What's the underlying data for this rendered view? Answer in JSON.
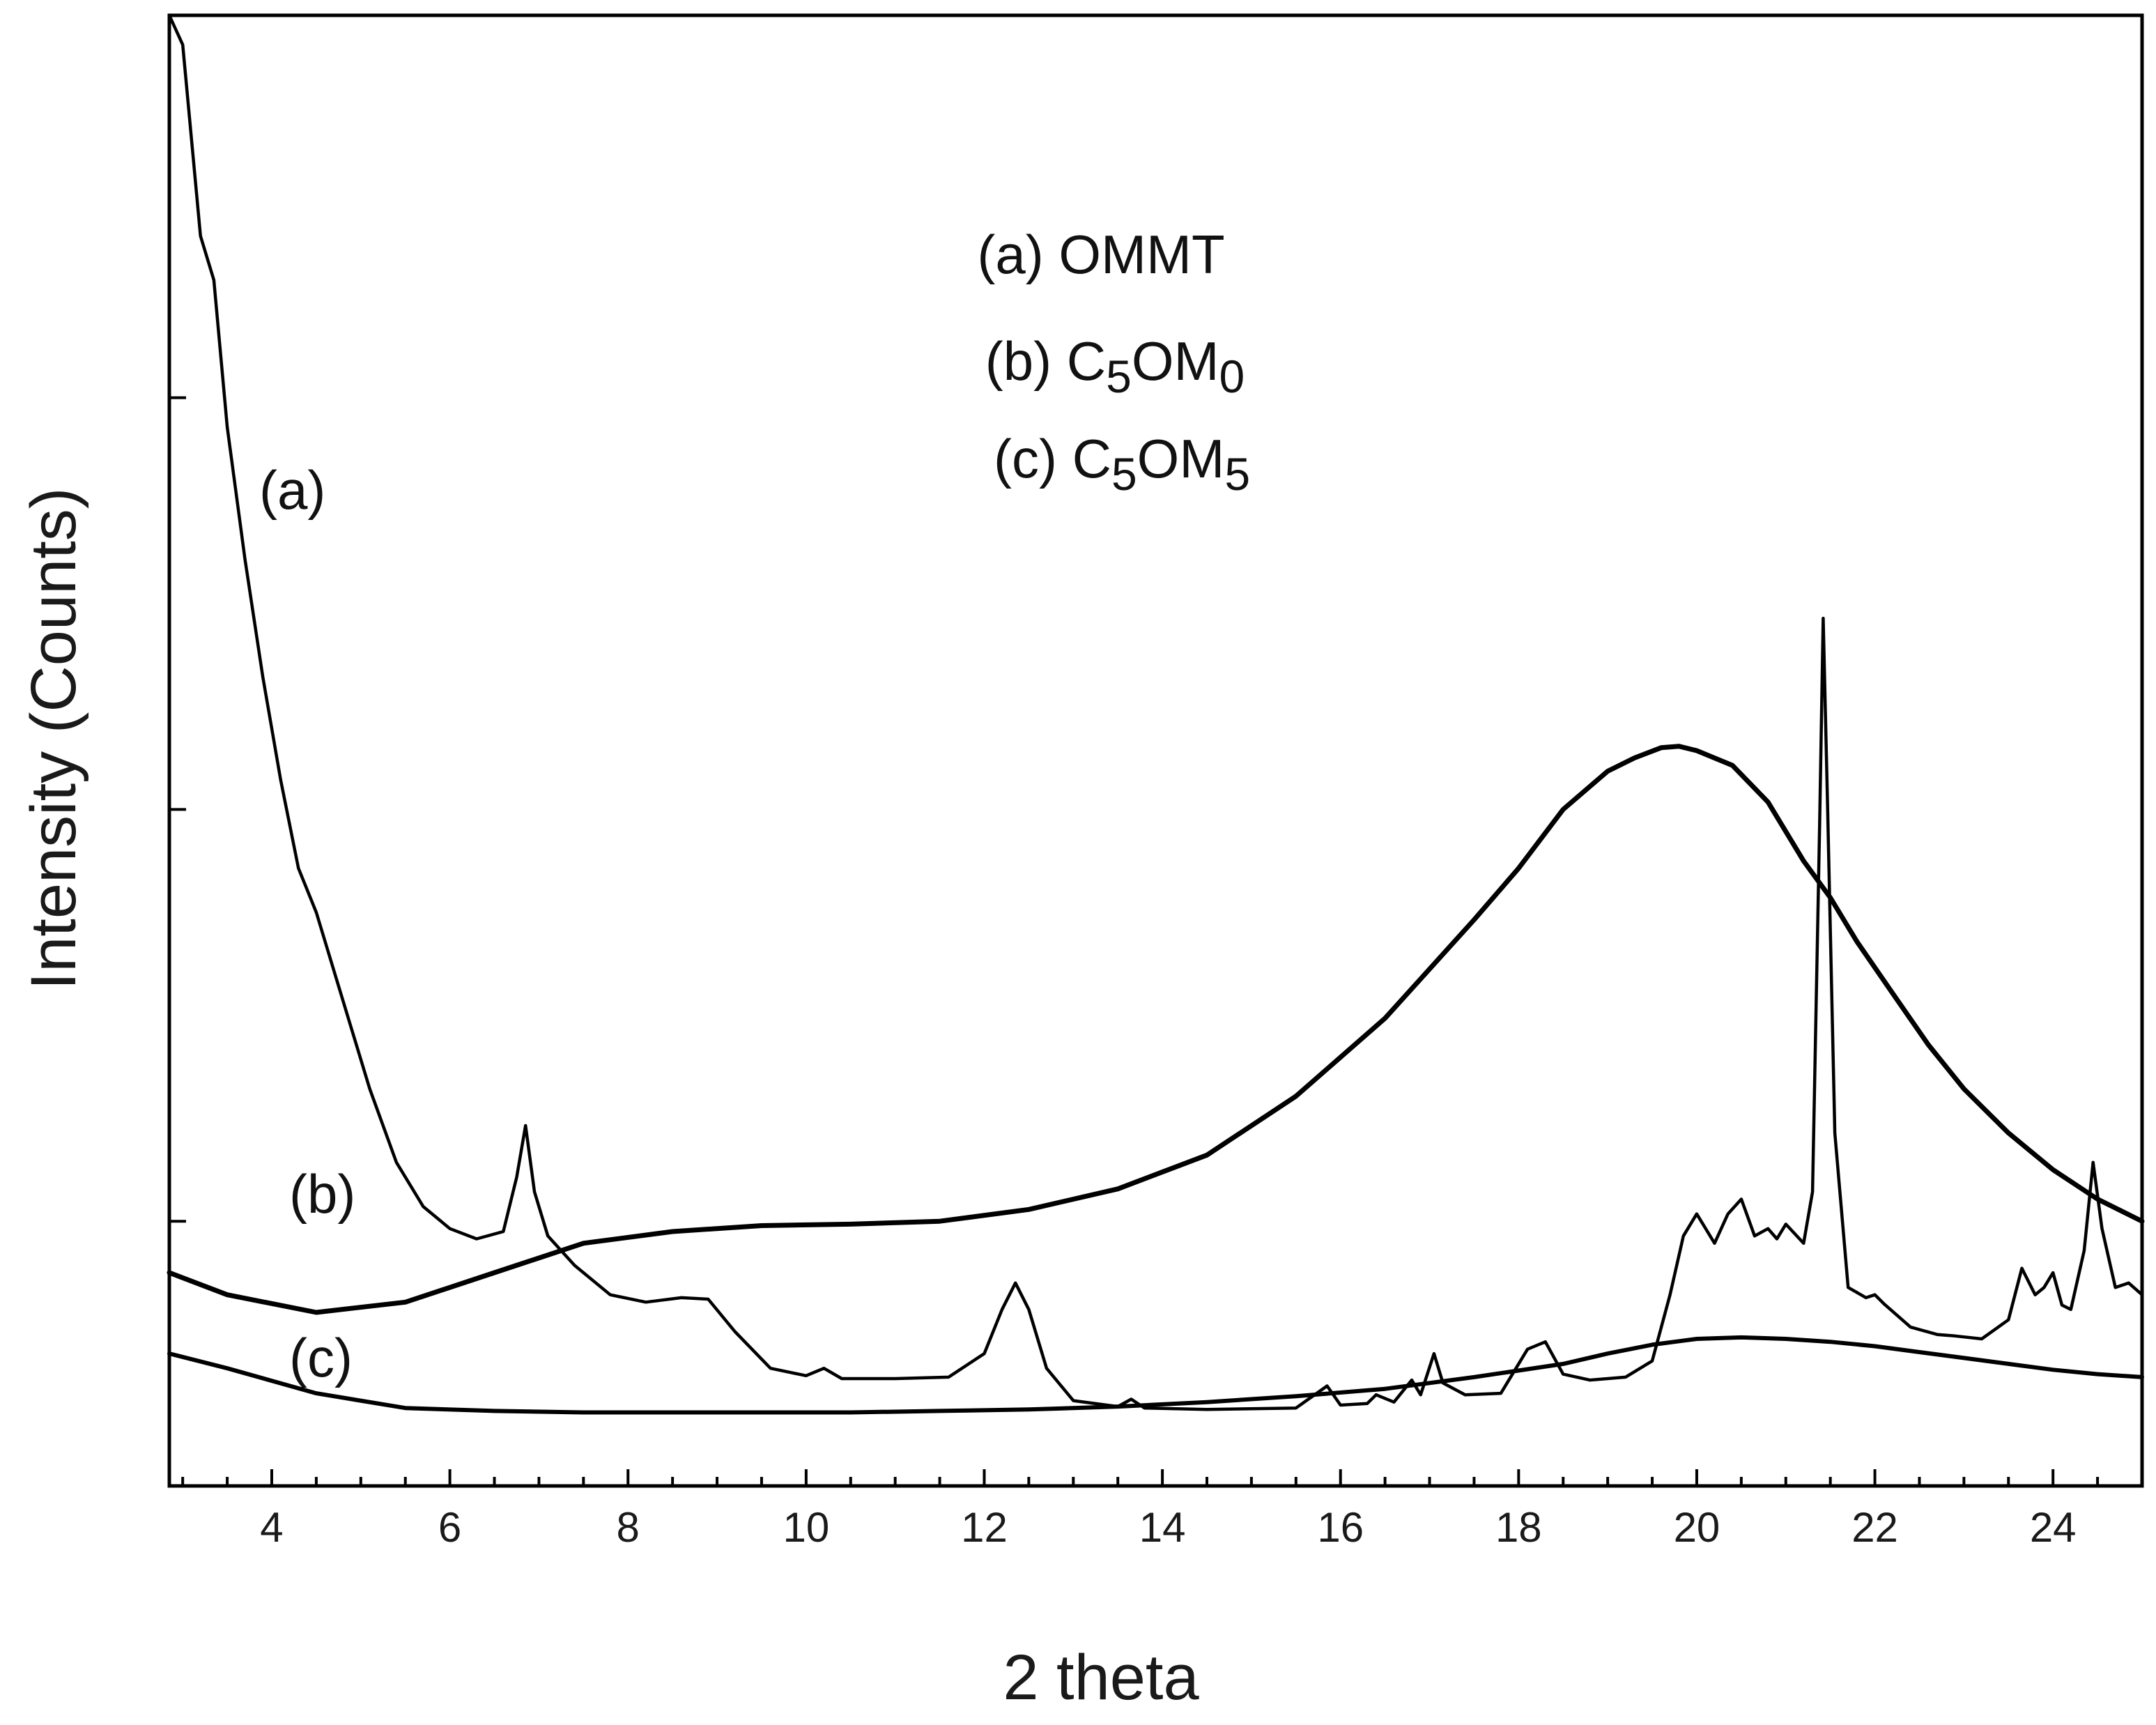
{
  "chart_data": {
    "type": "line",
    "title": "",
    "xlabel": "2 theta",
    "ylabel": "Intensity (Counts)",
    "xlim": [
      2.85,
      25.0
    ],
    "ylim": [
      0,
      100
    ],
    "x_ticks": [
      4,
      6,
      8,
      10,
      12,
      14,
      16,
      18,
      20,
      22,
      24
    ],
    "x_tick_labels": [
      "4",
      "6",
      "8",
      "10",
      "12",
      "14",
      "16",
      "18",
      "20",
      "22",
      "24"
    ],
    "y_major_ticks": [
      18,
      46,
      74
    ],
    "y_tick_labels_shown": false,
    "legend": {
      "placement": "top-center",
      "entries": [
        {
          "prefix": "(a) ",
          "name": "OMMT",
          "main": "OMMT",
          "sub1": "",
          "mid": "",
          "sub2": ""
        },
        {
          "prefix": "(b) ",
          "name": "C5OM0",
          "main": "C",
          "sub1": "5",
          "mid": "OM",
          "sub2": "0"
        },
        {
          "prefix": "(c) ",
          "name": "C5OM5",
          "main": "C",
          "sub1": "5",
          "mid": "OM",
          "sub2": "5"
        }
      ]
    },
    "series": [
      {
        "name": "(a) OMMT",
        "label": "(a)",
        "x": [
          2.85,
          3.0,
          3.2,
          3.35,
          3.5,
          3.7,
          3.9,
          4.1,
          4.3,
          4.5,
          4.8,
          5.1,
          5.4,
          5.7,
          6.0,
          6.3,
          6.6,
          6.75,
          6.85,
          6.95,
          7.1,
          7.4,
          7.8,
          8.2,
          8.6,
          8.9,
          9.2,
          9.6,
          10.0,
          10.2,
          10.4,
          11.0,
          11.6,
          12.0,
          12.2,
          12.35,
          12.5,
          12.7,
          13.0,
          13.5,
          13.65,
          13.8,
          14.5,
          15.5,
          15.85,
          16.0,
          16.3,
          16.4,
          16.6,
          16.8,
          16.9,
          17.05,
          17.15,
          17.4,
          17.8,
          18.1,
          18.3,
          18.5,
          18.8,
          19.2,
          19.5,
          19.7,
          19.85,
          20.0,
          20.2,
          20.35,
          20.5,
          20.65,
          20.8,
          20.9,
          21.0,
          21.2,
          21.3,
          21.38,
          21.42,
          21.47,
          21.55,
          21.7,
          21.9,
          22.0,
          22.1,
          22.4,
          22.7,
          22.9,
          23.2,
          23.5,
          23.65,
          23.8,
          23.9,
          24.0,
          24.1,
          24.2,
          24.35,
          24.45,
          24.55,
          24.7,
          24.85,
          25.0
        ],
        "y": [
          100,
          98,
          85,
          82,
          72,
          63,
          55,
          48,
          42,
          39,
          33,
          27,
          22,
          19,
          17.5,
          16.8,
          17.3,
          21,
          24.5,
          20,
          17,
          15,
          13,
          12.5,
          12.8,
          12.7,
          10.5,
          8,
          7.5,
          8,
          7.3,
          7.3,
          7.4,
          9,
          12,
          13.8,
          12,
          8,
          5.8,
          5.4,
          5.9,
          5.3,
          5.2,
          5.3,
          6.8,
          5.5,
          5.6,
          6.2,
          5.7,
          7.2,
          6.2,
          9,
          7,
          6.2,
          6.3,
          9.3,
          9.8,
          7.6,
          7.2,
          7.4,
          8.5,
          13,
          17,
          18.5,
          16.5,
          18.5,
          19.5,
          17,
          17.5,
          16.8,
          17.8,
          16.5,
          20,
          45,
          59,
          46,
          24,
          13.5,
          12.8,
          13,
          12.4,
          10.8,
          10.3,
          10.2,
          10,
          11.3,
          14.8,
          13,
          13.5,
          14.5,
          12.3,
          12,
          16,
          22,
          17.5,
          13.5,
          13.8,
          13
        ],
        "stroke_width": 4.5
      },
      {
        "name": "(b) C5OM0",
        "label": "(b)",
        "x": [
          2.85,
          3.5,
          4.5,
          5.5,
          6.5,
          7.5,
          8.5,
          9.5,
          10.5,
          11.5,
          12.5,
          13.5,
          14.5,
          15.5,
          16.5,
          17.5,
          18.0,
          18.5,
          19.0,
          19.3,
          19.6,
          19.8,
          20.0,
          20.4,
          20.8,
          21.2,
          21.5,
          21.8,
          22.2,
          22.6,
          23.0,
          23.5,
          24.0,
          24.5,
          25.0
        ],
        "y": [
          14.5,
          13,
          11.8,
          12.5,
          14.5,
          16.5,
          17.3,
          17.7,
          17.8,
          18,
          18.8,
          20.2,
          22.5,
          26.5,
          31.8,
          38.5,
          42,
          46,
          48.6,
          49.5,
          50.2,
          50.3,
          50,
          49,
          46.5,
          42.5,
          40,
          37,
          33.5,
          30,
          27,
          24,
          21.5,
          19.5,
          18
        ],
        "stroke_width": 7
      },
      {
        "name": "(c) C5OM5",
        "label": "(c)",
        "x": [
          2.85,
          3.5,
          4.5,
          5.5,
          6.5,
          7.5,
          8.5,
          9.5,
          10.5,
          11.5,
          12.5,
          13.5,
          14.5,
          15.5,
          16.5,
          17.5,
          18.5,
          19.0,
          19.5,
          20.0,
          20.5,
          21.0,
          21.5,
          22.0,
          22.5,
          23.0,
          23.5,
          24.0,
          24.5,
          25.0
        ],
        "y": [
          9,
          8,
          6.3,
          5.3,
          5.1,
          5,
          5,
          5,
          5,
          5.1,
          5.2,
          5.4,
          5.7,
          6.1,
          6.6,
          7.4,
          8.3,
          9,
          9.6,
          10,
          10.1,
          10,
          9.8,
          9.5,
          9.1,
          8.7,
          8.3,
          7.9,
          7.6,
          7.4
        ],
        "stroke_width": 6
      }
    ],
    "series_labels": [
      "(a)",
      "(b)",
      "(c)"
    ]
  }
}
